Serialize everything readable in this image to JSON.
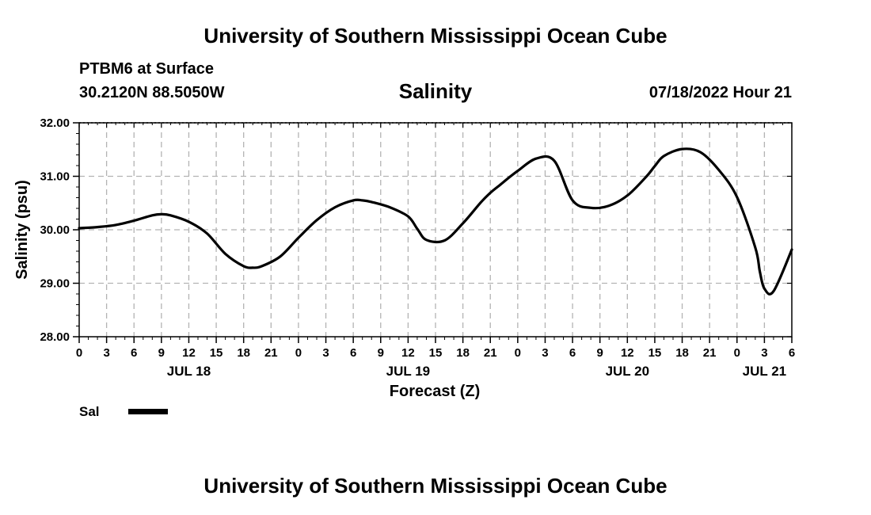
{
  "header": {
    "title": "University of Southern Mississippi Ocean Cube",
    "station": "PTBM6 at Surface",
    "coords": "30.2120N  88.5050W",
    "datetime": "07/18/2022 Hour 21"
  },
  "footer": {
    "title": "University of Southern Mississippi Ocean Cube"
  },
  "chart_data": {
    "type": "line",
    "title": "Salinity",
    "xlabel": "Forecast (Z)",
    "ylabel": "Salinity (psu)",
    "ylim": [
      28.0,
      32.0
    ],
    "xlim": [
      0,
      78
    ],
    "y_ticks": [
      "28.00",
      "29.00",
      "30.00",
      "31.00",
      "32.00"
    ],
    "x_tick_labels": [
      "0",
      "3",
      "6",
      "9",
      "12",
      "15",
      "18",
      "21",
      "0",
      "3",
      "6",
      "9",
      "12",
      "15",
      "18",
      "21",
      "0",
      "3",
      "6",
      "9",
      "12",
      "15",
      "18",
      "21",
      "0",
      "3",
      "6"
    ],
    "day_labels": [
      {
        "label": "JUL 18",
        "hour": 12
      },
      {
        "label": "JUL 19",
        "hour": 36
      },
      {
        "label": "JUL 20",
        "hour": 60
      },
      {
        "label": "JUL 21",
        "hour": 75
      }
    ],
    "grid": true,
    "legend": [
      {
        "name": "Sal",
        "color": "#000000"
      }
    ],
    "series": [
      {
        "name": "Sal",
        "x": [
          0,
          2,
          4,
          6,
          8,
          9,
          10,
          12,
          14,
          16,
          18,
          19,
          20,
          22,
          24,
          26,
          28,
          30,
          31,
          32,
          34,
          36,
          37,
          38,
          40,
          42,
          44,
          45,
          46,
          47,
          48,
          50,
          52,
          54,
          56,
          58,
          60,
          62,
          63,
          64,
          66,
          68,
          70,
          72,
          74,
          74.5,
          75,
          76,
          78
        ],
        "y": [
          30.03,
          30.05,
          30.09,
          30.17,
          30.27,
          30.29,
          30.27,
          30.15,
          29.93,
          29.55,
          29.32,
          29.29,
          29.32,
          29.5,
          29.85,
          30.18,
          30.42,
          30.55,
          30.55,
          30.52,
          30.42,
          30.25,
          30.02,
          29.81,
          29.8,
          30.12,
          30.52,
          30.69,
          30.83,
          30.97,
          31.1,
          31.33,
          31.29,
          30.55,
          30.41,
          30.45,
          30.64,
          30.98,
          31.19,
          31.38,
          31.51,
          31.45,
          31.12,
          30.61,
          29.67,
          29.22,
          28.9,
          28.85,
          29.63
        ]
      }
    ]
  }
}
